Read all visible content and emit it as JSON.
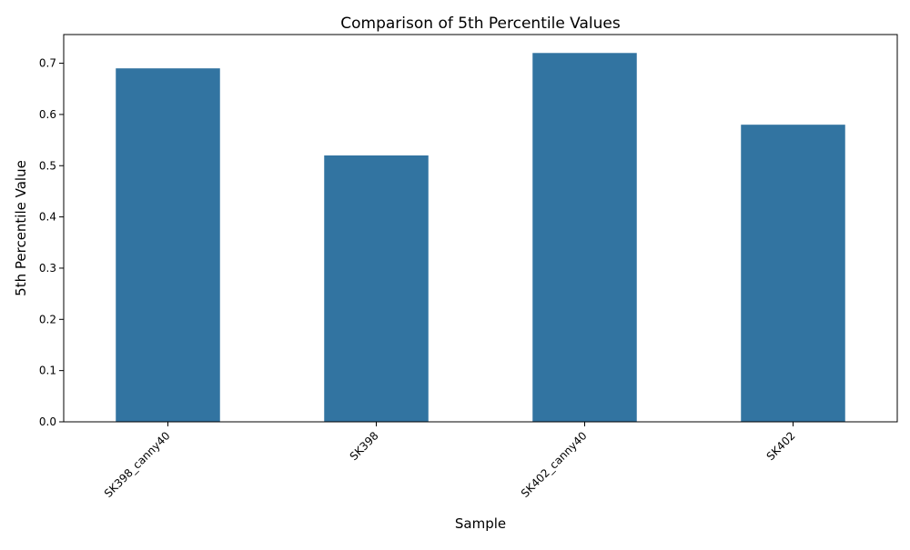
{
  "chart_data": {
    "type": "bar",
    "title": "Comparison of 5th Percentile Values",
    "xlabel": "Sample",
    "ylabel": "5th Percentile Value",
    "categories": [
      "SK398_canny40",
      "SK398",
      "SK402_canny40",
      "SK402"
    ],
    "values": [
      0.69,
      0.52,
      0.72,
      0.58
    ],
    "ylim": [
      0,
      0.756
    ],
    "yticks": [
      0.0,
      0.1,
      0.2,
      0.3,
      0.4,
      0.5,
      0.6,
      0.7
    ],
    "ytick_labels": [
      "0.0",
      "0.1",
      "0.2",
      "0.3",
      "0.4",
      "0.5",
      "0.6",
      "0.7"
    ],
    "bar_color": "#3274a1",
    "grid": false,
    "legend": "none"
  }
}
